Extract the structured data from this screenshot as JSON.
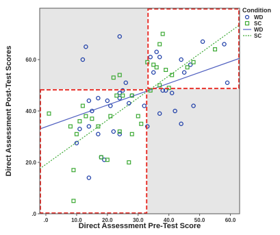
{
  "chart_data": {
    "type": "scatter",
    "title": "",
    "xlabel": "Direct Assessment Pre-Test Score",
    "ylabel": "Direct Assessment Post-Test Scores",
    "xlim": [
      -2,
      63
    ],
    "ylim": [
      0,
      80
    ],
    "x_ticks": [
      0,
      10,
      20,
      30,
      40,
      50,
      60
    ],
    "x_tick_labels": [
      ".0",
      "10.0",
      "20.0",
      "30.0",
      "40.0",
      "50.0",
      "60.0"
    ],
    "y_ticks": [
      0,
      20,
      40,
      60
    ],
    "y_tick_labels": [
      ".0",
      "20.0",
      "40.0",
      "60.0"
    ],
    "grid": false,
    "legend": {
      "title": "Condition",
      "position": "top-right",
      "entries": [
        {
          "label": "WD",
          "kind": "marker",
          "color": "#1f3fa8",
          "shape": "circle"
        },
        {
          "label": "SC",
          "kind": "marker",
          "color": "#3aa832",
          "shape": "square"
        },
        {
          "label": "WD",
          "kind": "line",
          "color": "#5060c0",
          "style": "solid"
        },
        {
          "label": "SC",
          "kind": "line",
          "color": "#3aa832",
          "style": "dotted"
        }
      ]
    },
    "series": [
      {
        "name": "WD",
        "marker": "circle",
        "color": "#1f3fa8",
        "points": [
          {
            "x": 12,
            "y": 60
          },
          {
            "x": 13,
            "y": 65
          },
          {
            "x": 24,
            "y": 69
          },
          {
            "x": 10,
            "y": 27.5
          },
          {
            "x": 11,
            "y": 33
          },
          {
            "x": 14,
            "y": 44
          },
          {
            "x": 14,
            "y": 34
          },
          {
            "x": 14,
            "y": 14
          },
          {
            "x": 15,
            "y": 40
          },
          {
            "x": 17,
            "y": 45
          },
          {
            "x": 17,
            "y": 31
          },
          {
            "x": 18,
            "y": 22
          },
          {
            "x": 19,
            "y": 21
          },
          {
            "x": 20,
            "y": 44
          },
          {
            "x": 21,
            "y": 42
          },
          {
            "x": 22,
            "y": 32
          },
          {
            "x": 24,
            "y": 45
          },
          {
            "x": 24,
            "y": 31
          },
          {
            "x": 24,
            "y": 47
          },
          {
            "x": 25,
            "y": 48
          },
          {
            "x": 26,
            "y": 51
          },
          {
            "x": 27,
            "y": 43
          },
          {
            "x": 28,
            "y": 46
          },
          {
            "x": 32,
            "y": 42
          },
          {
            "x": 33,
            "y": 34
          },
          {
            "x": 34,
            "y": 61
          },
          {
            "x": 35,
            "y": 55
          },
          {
            "x": 36,
            "y": 63
          },
          {
            "x": 37,
            "y": 61
          },
          {
            "x": 37,
            "y": 39
          },
          {
            "x": 38,
            "y": 48
          },
          {
            "x": 39,
            "y": 48
          },
          {
            "x": 41,
            "y": 47
          },
          {
            "x": 42,
            "y": 40
          },
          {
            "x": 44,
            "y": 60
          },
          {
            "x": 44,
            "y": 35
          },
          {
            "x": 45,
            "y": 55
          },
          {
            "x": 47,
            "y": 58
          },
          {
            "x": 48,
            "y": 42
          },
          {
            "x": 51,
            "y": 67
          },
          {
            "x": 58,
            "y": 66
          },
          {
            "x": 59,
            "y": 51
          }
        ]
      },
      {
        "name": "SC",
        "marker": "square",
        "color": "#3aa832",
        "points": [
          {
            "x": 1,
            "y": 39
          },
          {
            "x": 8,
            "y": 34
          },
          {
            "x": 9,
            "y": 17
          },
          {
            "x": 9,
            "y": 5
          },
          {
            "x": 10,
            "y": 31
          },
          {
            "x": 11,
            "y": 36
          },
          {
            "x": 12,
            "y": 42
          },
          {
            "x": 13,
            "y": 38
          },
          {
            "x": 15,
            "y": 37
          },
          {
            "x": 17,
            "y": 34
          },
          {
            "x": 18,
            "y": 22
          },
          {
            "x": 20,
            "y": 21
          },
          {
            "x": 21,
            "y": 38
          },
          {
            "x": 22,
            "y": 53
          },
          {
            "x": 23,
            "y": 46
          },
          {
            "x": 24,
            "y": 54
          },
          {
            "x": 24,
            "y": 32
          },
          {
            "x": 25,
            "y": 46
          },
          {
            "x": 27,
            "y": 20
          },
          {
            "x": 28,
            "y": 46
          },
          {
            "x": 28,
            "y": 31
          },
          {
            "x": 30,
            "y": 38
          },
          {
            "x": 31,
            "y": 35
          },
          {
            "x": 33,
            "y": 59
          },
          {
            "x": 34,
            "y": 48
          },
          {
            "x": 35,
            "y": 58
          },
          {
            "x": 36,
            "y": 57
          },
          {
            "x": 37,
            "y": 50
          },
          {
            "x": 37,
            "y": 66
          },
          {
            "x": 38,
            "y": 70
          },
          {
            "x": 39,
            "y": 56
          },
          {
            "x": 40,
            "y": 49
          },
          {
            "x": 41,
            "y": 54
          },
          {
            "x": 46,
            "y": 57
          },
          {
            "x": 48,
            "y": 59
          },
          {
            "x": 55,
            "y": 64
          }
        ]
      }
    ],
    "fit_lines": [
      {
        "name": "WD",
        "color": "#5060c0",
        "style": "solid",
        "x0": -2,
        "y0": 33,
        "x1": 63,
        "y1": 60.5
      },
      {
        "name": "SC",
        "color": "#3aa832",
        "style": "dotted",
        "x0": -2,
        "y0": 17.5,
        "x1": 63,
        "y1": 73.5
      }
    ],
    "quadrant_split": {
      "x": 33,
      "y": 48.5
    },
    "shaded_quadrants": [
      "top-left",
      "bottom-right"
    ],
    "highlighted_quadrants": [
      "top-right",
      "bottom-left"
    ],
    "highlight_color": "#e8302a",
    "shade_color": "#e6e6e6"
  }
}
